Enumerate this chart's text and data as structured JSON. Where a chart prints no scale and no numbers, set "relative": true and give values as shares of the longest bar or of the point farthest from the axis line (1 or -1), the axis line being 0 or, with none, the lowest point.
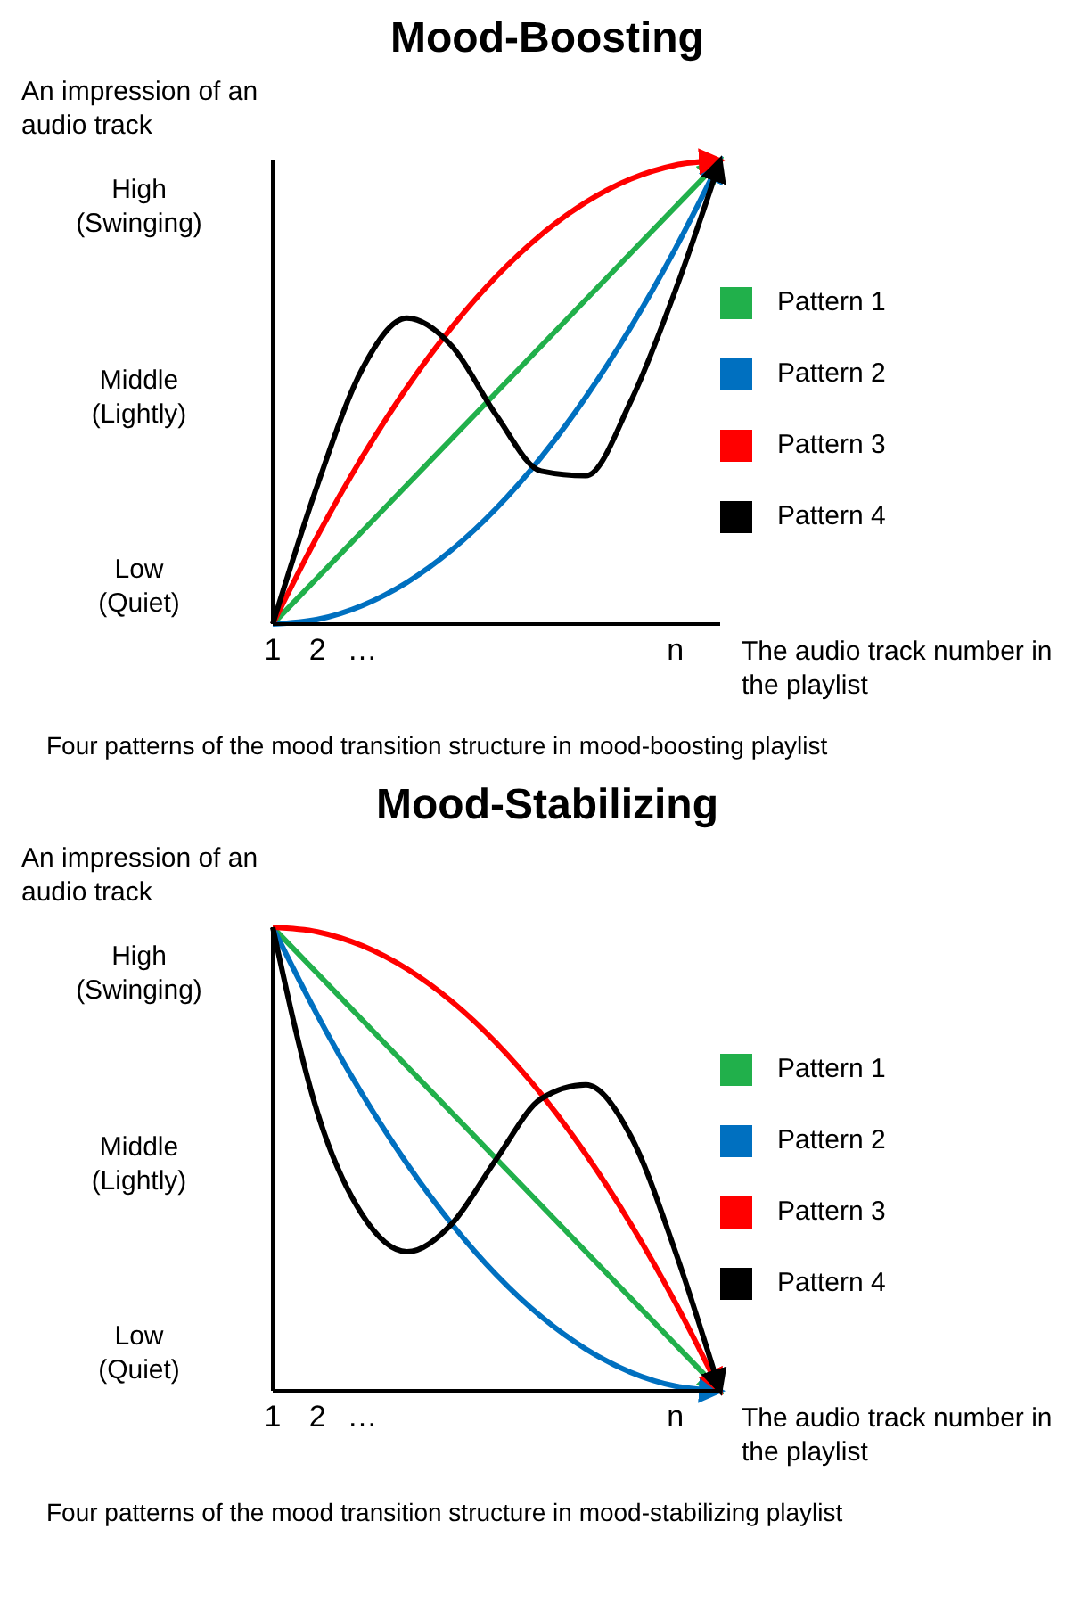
{
  "chart_data": [
    {
      "type": "line",
      "title": "Mood-Boosting",
      "ylabel": "An impression of an audio track",
      "xlabel": "The audio track number in the playlist",
      "annotations": [
        "Four patterns of the mood transition structure in mood-boosting playlist",
        "High\n(Swinging)",
        "Middle\n(Lightly)",
        "Low\n(Quiet)"
      ],
      "relative": true,
      "categories": [
        "1",
        "2",
        "…",
        null,
        null,
        null,
        null,
        null,
        null,
        "n",
        null
      ],
      "legend": "right",
      "series": [
        {
          "name": "Pattern 1",
          "color": "#21b04b",
          "values": [
            0,
            0.1,
            0.2,
            0.3,
            0.4,
            0.5,
            0.6,
            0.7,
            0.8,
            0.9,
            1
          ]
        },
        {
          "name": "Pattern 2",
          "color": "#0070c0",
          "values": [
            0,
            0.01,
            0.04,
            0.09,
            0.16,
            0.25,
            0.36,
            0.49,
            0.64,
            0.81,
            1
          ]
        },
        {
          "name": "Pattern 3",
          "color": "#ff0000",
          "values": [
            0,
            0.19,
            0.36,
            0.51,
            0.64,
            0.75,
            0.84,
            0.91,
            0.96,
            0.99,
            1
          ]
        },
        {
          "name": "Pattern 4",
          "color": "#000000",
          "values": [
            0,
            0.3,
            0.55,
            0.66,
            0.6,
            0.45,
            0.33,
            0.32,
            0.48,
            0.72,
            1
          ]
        }
      ]
    },
    {
      "type": "line",
      "title": "Mood-Stabilizing",
      "ylabel": "An impression of an audio track",
      "xlabel": "The audio track number in the playlist",
      "annotations": [
        "Four patterns of the mood transition structure in mood-stabilizing playlist",
        "High\n(Swinging)",
        "Middle\n(Lightly)",
        "Low\n(Quiet)"
      ],
      "relative": true,
      "categories": [
        "1",
        "2",
        "…",
        null,
        null,
        null,
        null,
        null,
        null,
        "n",
        null
      ],
      "legend": "right",
      "series": [
        {
          "name": "Pattern 1",
          "color": "#21b04b",
          "values": [
            1,
            0.9,
            0.8,
            0.7,
            0.6,
            0.5,
            0.4,
            0.3,
            0.2,
            0.1,
            0
          ]
        },
        {
          "name": "Pattern 2",
          "color": "#0070c0",
          "values": [
            1,
            0.81,
            0.64,
            0.49,
            0.36,
            0.25,
            0.16,
            0.09,
            0.04,
            0.01,
            0
          ]
        },
        {
          "name": "Pattern 3",
          "color": "#ff0000",
          "values": [
            1,
            0.99,
            0.96,
            0.91,
            0.84,
            0.75,
            0.64,
            0.51,
            0.36,
            0.19,
            0
          ]
        },
        {
          "name": "Pattern 4",
          "color": "#000000",
          "values": [
            1,
            0.6,
            0.38,
            0.3,
            0.36,
            0.5,
            0.63,
            0.66,
            0.55,
            0.3,
            0
          ]
        }
      ]
    }
  ]
}
